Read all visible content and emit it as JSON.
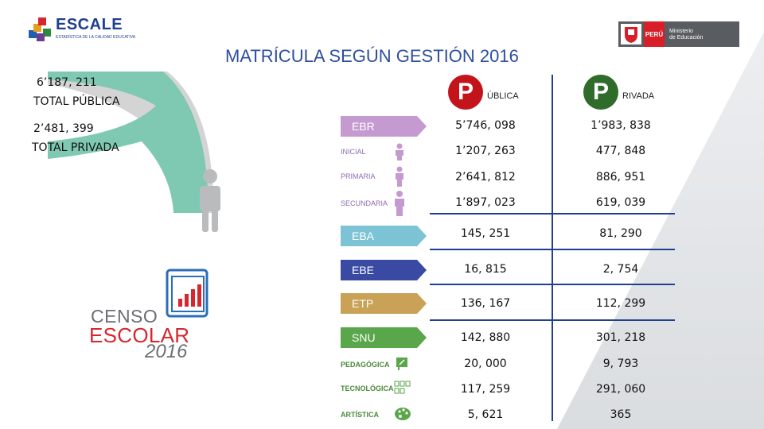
{
  "header": {
    "title": "MATRÍCULA SEGÚN GESTIÓN 2016",
    "escale_brand": "ESCALE",
    "escale_tagline": "ESTADÍSTICA DE LA CALIDAD EDUCATIVA",
    "minedu_country": "PERÚ",
    "minedu_name_line1": "Ministerio",
    "minedu_name_line2": "de Educación"
  },
  "totals": {
    "publica_value": "6’187, 211",
    "publica_label": "TOTAL PÚBLICA",
    "privada_value": "2’481, 399",
    "privada_label": "TOTAL PRIVADA"
  },
  "columns": {
    "publica_letter": "P",
    "publica_suffix": "ÚBLICA",
    "privada_letter": "P",
    "privada_suffix": "RIVADA"
  },
  "rows": [
    {
      "label": "EBR",
      "publica": "5’746, 098",
      "privada": "1’983, 838"
    },
    {
      "label": "INICIAL",
      "publica": "1’207, 263",
      "privada": "477, 848"
    },
    {
      "label": "PRIMARIA",
      "publica": "2’641, 812",
      "privada": "886, 951"
    },
    {
      "label": "SECUNDARIA",
      "publica": "1’897, 023",
      "privada": "619, 039"
    },
    {
      "label": "EBA",
      "publica": "145, 251",
      "privada": "81, 290"
    },
    {
      "label": "EBE",
      "publica": "16, 815",
      "privada": "2, 754"
    },
    {
      "label": "ETP",
      "publica": "136, 167",
      "privada": "112, 299"
    },
    {
      "label": "SNU",
      "publica": "142, 880",
      "privada": "301, 218"
    },
    {
      "label": "PEDAGÓGICA",
      "publica": "20, 000",
      "privada": "9, 793"
    },
    {
      "label": "TECNOLÓGICA",
      "publica": "117, 259",
      "privada": "291, 060"
    },
    {
      "label": "ARTÍSTICA",
      "publica": "5, 621",
      "privada": "365"
    }
  ],
  "censo": {
    "line1": "CENSO",
    "line2": "ESCOLAR",
    "year": "2016"
  },
  "colors": {
    "title": "#2e4f9c",
    "publica_badge": "#c4141b",
    "privada_badge": "#2f6b2a",
    "arc": "#7fc9b3",
    "ebr": "#c49ad0",
    "eba": "#7cc3d6",
    "ebe": "#3a4aa3",
    "etp": "#c9a257",
    "snu": "#5aa64a",
    "line": "#1f3f8f"
  }
}
